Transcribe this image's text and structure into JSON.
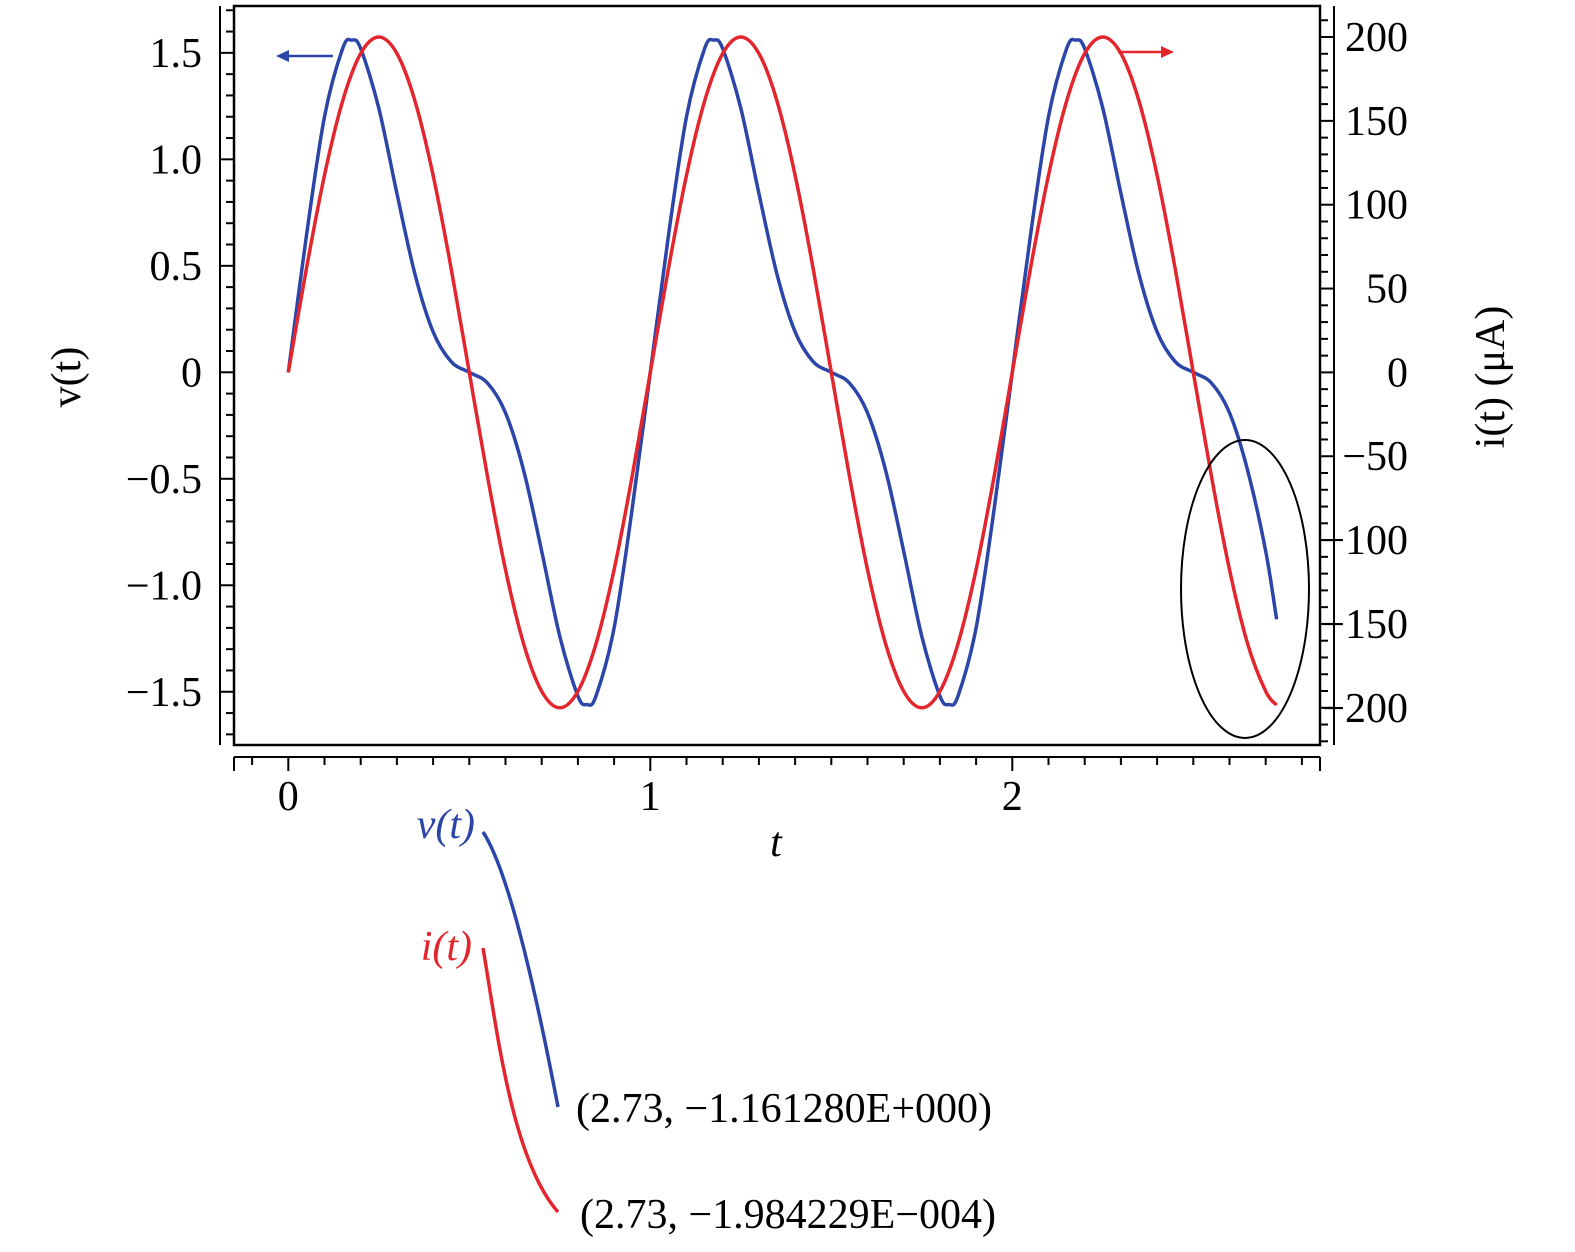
{
  "chart_data": {
    "type": "line",
    "xlabel": "t",
    "ylabel_left": "v(t)",
    "ylabel_right": "i(t) (μA)",
    "xlim": [
      -0.15,
      2.85
    ],
    "ylim_left": [
      -1.75,
      1.72
    ],
    "ylim_right": [
      -222.2,
      218.5
    ],
    "x_ticks": [
      {
        "value": 0,
        "label": "0"
      },
      {
        "value": 1,
        "label": "1"
      },
      {
        "value": 2,
        "label": "2"
      }
    ],
    "y_ticks_left": [
      {
        "value": 1.5,
        "label": "1.5"
      },
      {
        "value": 1.0,
        "label": "1.0"
      },
      {
        "value": 0.5,
        "label": "0.5"
      },
      {
        "value": 0,
        "label": "0"
      },
      {
        "value": -0.5,
        "label": "−0.5"
      },
      {
        "value": -1.0,
        "label": "−1.0"
      },
      {
        "value": -1.5,
        "label": "−1.5"
      }
    ],
    "y_ticks_right": [
      {
        "value": 200,
        "label": "200"
      },
      {
        "value": 150,
        "label": "150"
      },
      {
        "value": 100,
        "label": "100"
      },
      {
        "value": 50,
        "label": "50"
      },
      {
        "value": 0,
        "label": "0"
      },
      {
        "value": -50,
        "label": "−50"
      },
      {
        "value": -100,
        "label": "−100"
      },
      {
        "value": -150,
        "label": "−150"
      },
      {
        "value": -200,
        "label": "−200"
      }
    ],
    "grid": false,
    "series": [
      {
        "name": "v(t)",
        "axis": "left",
        "color": "#2b45a8",
        "x": [
          0,
          0.05,
          0.1,
          0.15,
          0.175,
          0.2,
          0.25,
          0.3,
          0.35,
          0.4,
          0.45,
          0.5,
          0.55,
          0.6,
          0.65,
          0.7,
          0.75,
          0.8,
          0.825,
          0.85,
          0.9,
          0.95,
          1.0,
          1.05,
          1.1,
          1.15,
          1.175,
          1.2,
          1.25,
          1.3,
          1.35,
          1.4,
          1.45,
          1.5,
          1.55,
          1.6,
          1.65,
          1.7,
          1.75,
          1.8,
          1.825,
          1.85,
          1.9,
          1.95,
          2.0,
          2.05,
          2.1,
          2.15,
          2.175,
          2.2,
          2.25,
          2.3,
          2.35,
          2.4,
          2.45,
          2.5,
          2.55,
          2.6,
          2.65,
          2.7,
          2.73
        ],
        "y": [
          0,
          0.64,
          1.2,
          1.52,
          1.56,
          1.52,
          1.24,
          0.84,
          0.46,
          0.19,
          0.05,
          0,
          -0.05,
          -0.19,
          -0.46,
          -0.84,
          -1.24,
          -1.52,
          -1.56,
          -1.52,
          -1.2,
          -0.64,
          0,
          0.64,
          1.2,
          1.52,
          1.56,
          1.52,
          1.24,
          0.84,
          0.46,
          0.19,
          0.05,
          0,
          -0.05,
          -0.19,
          -0.46,
          -0.84,
          -1.24,
          -1.52,
          -1.56,
          -1.52,
          -1.2,
          -0.64,
          0,
          0.64,
          1.2,
          1.52,
          1.56,
          1.52,
          1.24,
          0.84,
          0.46,
          0.19,
          0.05,
          0,
          -0.05,
          -0.19,
          -0.46,
          -0.84,
          -1.16
        ]
      },
      {
        "name": "i(t)",
        "axis": "right",
        "color": "#e3262d",
        "x": [
          0,
          0.05,
          0.1,
          0.15,
          0.2,
          0.25,
          0.3,
          0.35,
          0.4,
          0.45,
          0.5,
          0.55,
          0.6,
          0.65,
          0.7,
          0.75,
          0.8,
          0.85,
          0.9,
          0.95,
          1.0,
          1.05,
          1.1,
          1.15,
          1.2,
          1.25,
          1.3,
          1.35,
          1.4,
          1.45,
          1.5,
          1.55,
          1.6,
          1.65,
          1.7,
          1.75,
          1.8,
          1.85,
          1.9,
          1.95,
          2.0,
          2.05,
          2.1,
          2.15,
          2.2,
          2.25,
          2.3,
          2.35,
          2.4,
          2.45,
          2.5,
          2.55,
          2.6,
          2.65,
          2.7,
          2.73
        ],
        "y": [
          0,
          61.8,
          117.6,
          161.8,
          190.2,
          200,
          190.2,
          161.8,
          117.6,
          61.8,
          0,
          -61.8,
          -117.6,
          -161.8,
          -190.2,
          -200,
          -190.2,
          -161.8,
          -117.6,
          -61.8,
          0,
          61.8,
          117.6,
          161.8,
          190.2,
          200,
          190.2,
          161.8,
          117.6,
          61.8,
          0,
          -61.8,
          -117.6,
          -161.8,
          -190.2,
          -200,
          -190.2,
          -161.8,
          -117.6,
          -61.8,
          0,
          61.8,
          117.6,
          161.8,
          190.2,
          200,
          190.2,
          161.8,
          117.6,
          61.8,
          0,
          -61.8,
          -117.6,
          -161.8,
          -190.2,
          -198.4
        ]
      }
    ],
    "inset": {
      "v_label": "v(t)",
      "i_label": "i(t)",
      "v_readout": "(2.73, −1.161280E+000)",
      "i_readout": "(2.73, −1.984229E−004)"
    }
  }
}
